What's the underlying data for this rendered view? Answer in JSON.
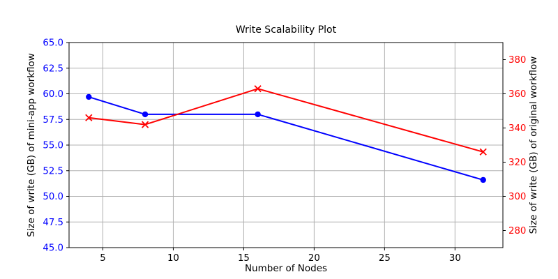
{
  "chart_data": {
    "type": "line",
    "title": "Write Scalability Plot",
    "xlabel": "Number of Nodes",
    "ylabel_left": "Size of write (GB) of mini-app workflow",
    "ylabel_right": "Size of write (GB) of original workflow",
    "x": [
      4,
      8,
      16,
      32
    ],
    "series": [
      {
        "name": "mini-app workflow",
        "axis": "left",
        "values": [
          59.7,
          58.0,
          58.0,
          51.6
        ],
        "color": "#0000ff",
        "marker": "circle"
      },
      {
        "name": "original workflow",
        "axis": "right",
        "values": [
          346,
          342,
          363,
          326
        ],
        "color": "#ff0000",
        "marker": "x"
      }
    ],
    "xlim": [
      2.6,
      33.4
    ],
    "ylim_left": [
      45,
      65
    ],
    "ylim_right": [
      270,
      390
    ],
    "xticks": {
      "values": [
        5,
        10,
        15,
        20,
        25,
        30
      ],
      "labels": [
        "5",
        "10",
        "15",
        "20",
        "25",
        "30"
      ]
    },
    "yticks_left": {
      "values": [
        45,
        47.5,
        50,
        52.5,
        55,
        57.5,
        60,
        62.5,
        65
      ],
      "labels": [
        "45.0",
        "47.5",
        "50.0",
        "52.5",
        "55.0",
        "57.5",
        "60.0",
        "62.5",
        "65.0"
      ]
    },
    "yticks_right": {
      "values": [
        280,
        300,
        320,
        340,
        360,
        380
      ],
      "labels": [
        "280",
        "300",
        "320",
        "340",
        "360",
        "380"
      ]
    },
    "grid": true,
    "legend": false,
    "colors": {
      "left_axis": "#0000ff",
      "right_axis": "#ff0000",
      "x_tick_labels": "#000000",
      "grid": "#b0b0b0",
      "spines": "#000000",
      "background": "#ffffff"
    }
  }
}
